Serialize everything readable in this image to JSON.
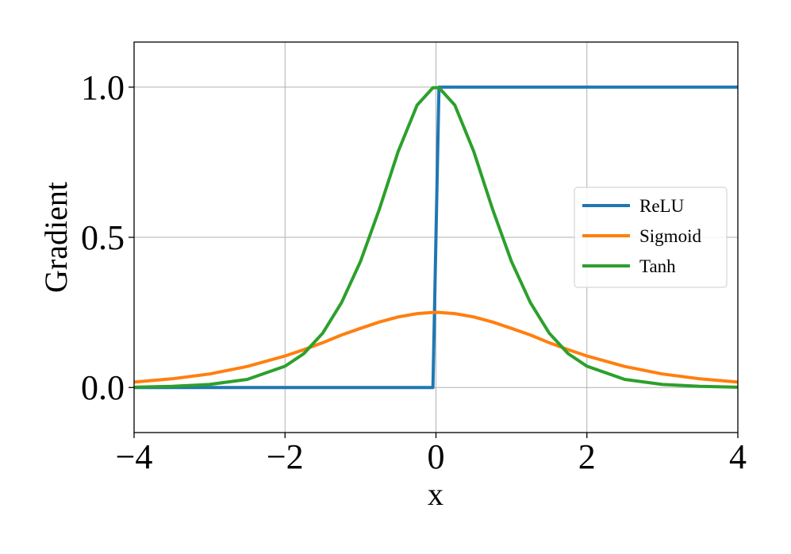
{
  "chart_data": {
    "type": "line",
    "title": "",
    "xlabel": "x",
    "ylabel": "Gradient",
    "xlim": [
      -4,
      4
    ],
    "ylim": [
      -0.15,
      1.15
    ],
    "xticks": [
      -4,
      -2,
      0,
      2,
      4
    ],
    "xtick_labels": [
      "−4",
      "−2",
      "0",
      "2",
      "4"
    ],
    "yticks": [
      0.0,
      0.5,
      1.0
    ],
    "ytick_labels": [
      "0.0",
      "0.5",
      "1.0"
    ],
    "grid": true,
    "legend_position": "center-right",
    "x": [
      -4,
      -3.5,
      -3,
      -2.5,
      -2,
      -1.75,
      -1.5,
      -1.25,
      -1,
      -0.75,
      -0.5,
      -0.25,
      -0.04,
      0.04,
      0.25,
      0.5,
      0.75,
      1,
      1.25,
      1.5,
      1.75,
      2,
      2.5,
      3,
      3.5,
      4
    ],
    "series": [
      {
        "name": "ReLU",
        "color": "#1f77b4",
        "values": [
          0,
          0,
          0,
          0,
          0,
          0,
          0,
          0,
          0,
          0,
          0,
          0,
          0,
          1,
          1,
          1,
          1,
          1,
          1,
          1,
          1,
          1,
          1,
          1,
          1,
          1
        ]
      },
      {
        "name": "Sigmoid",
        "color": "#ff7f0e",
        "values": [
          0.018,
          0.029,
          0.045,
          0.07,
          0.105,
          0.126,
          0.149,
          0.175,
          0.197,
          0.218,
          0.235,
          0.246,
          0.25,
          0.25,
          0.246,
          0.235,
          0.218,
          0.197,
          0.175,
          0.149,
          0.126,
          0.105,
          0.07,
          0.045,
          0.029,
          0.018
        ]
      },
      {
        "name": "Tanh",
        "color": "#2ca02c",
        "values": [
          0.001,
          0.004,
          0.01,
          0.027,
          0.071,
          0.113,
          0.181,
          0.283,
          0.42,
          0.594,
          0.786,
          0.94,
          0.998,
          0.998,
          0.94,
          0.786,
          0.594,
          0.42,
          0.283,
          0.181,
          0.113,
          0.071,
          0.027,
          0.01,
          0.004,
          0.001
        ]
      }
    ]
  }
}
